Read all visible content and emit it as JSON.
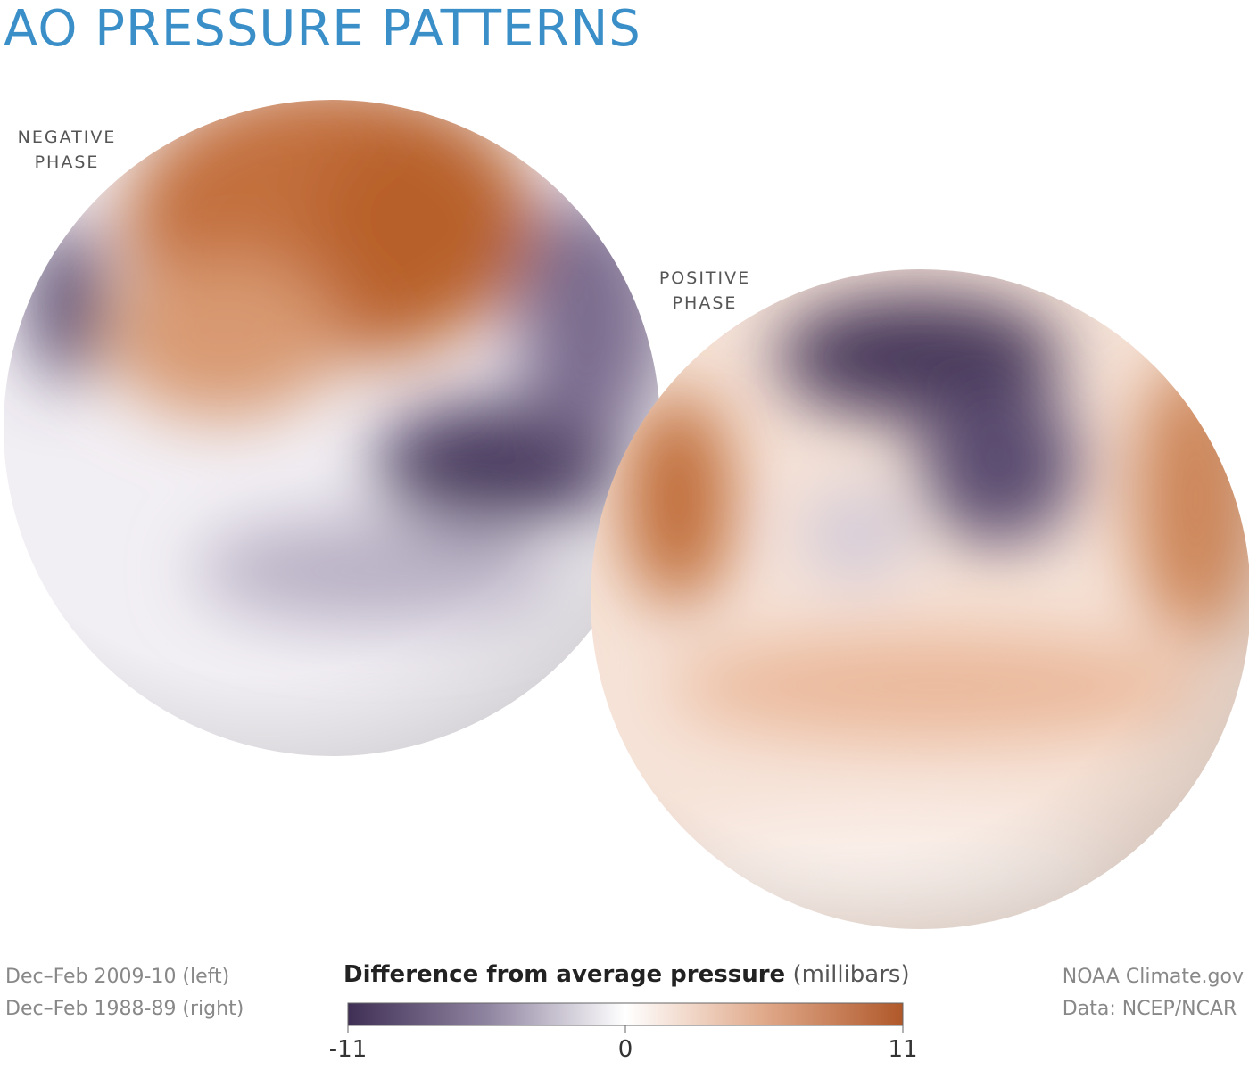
{
  "title": "AO PRESSURE PATTERNS",
  "maps": [
    {
      "label": "NEGATIVE PHASE",
      "period": "Dec–Feb 2009-10 (left)"
    },
    {
      "label": "POSITIVE PHASE",
      "period": "Dec–Feb 1988-89 (right)"
    }
  ],
  "colorbar": {
    "title": "Difference from average pressure",
    "unit": "(millibars)",
    "lim": [
      -11,
      11
    ],
    "ticks": [
      -11,
      0,
      11
    ]
  },
  "credits": [
    "NOAA Climate.gov",
    "Data: NCEP/NCAR"
  ]
}
